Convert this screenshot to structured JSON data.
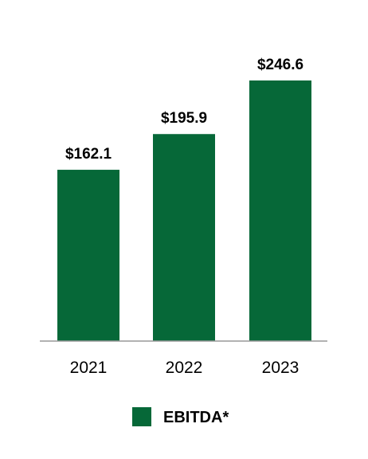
{
  "chart_data": {
    "type": "bar",
    "categories": [
      "2021",
      "2022",
      "2023"
    ],
    "values": [
      162.1,
      195.9,
      246.6
    ],
    "value_labels": [
      "$162.1",
      "$195.9",
      "$246.6"
    ],
    "series": [
      {
        "name": "EBITDA*",
        "values": [
          162.1,
          195.9,
          246.6
        ]
      }
    ],
    "title": "",
    "xlabel": "",
    "ylabel": "",
    "ylim": [
      0,
      246.6
    ],
    "grid": false,
    "legend_position": "bottom",
    "colors": {
      "bar": "#066838",
      "axis": "#999999"
    }
  }
}
